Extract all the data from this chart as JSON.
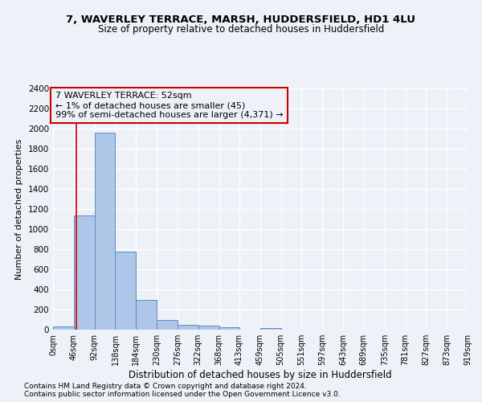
{
  "title_line1": "7, WAVERLEY TERRACE, MARSH, HUDDERSFIELD, HD1 4LU",
  "title_line2": "Size of property relative to detached houses in Huddersfield",
  "xlabel": "Distribution of detached houses by size in Huddersfield",
  "ylabel": "Number of detached properties",
  "footnote1": "Contains HM Land Registry data © Crown copyright and database right 2024.",
  "footnote2": "Contains public sector information licensed under the Open Government Licence v3.0.",
  "bin_edges": [
    0,
    46,
    92,
    138,
    184,
    230,
    276,
    322,
    368,
    413,
    459,
    505,
    551,
    597,
    643,
    689,
    735,
    781,
    827,
    873,
    919
  ],
  "bar_heights": [
    35,
    1140,
    1960,
    775,
    300,
    100,
    47,
    38,
    25,
    0,
    18,
    0,
    0,
    0,
    0,
    0,
    0,
    0,
    0,
    0
  ],
  "bar_color": "#aec6e8",
  "bar_edge_color": "#5a8fc4",
  "property_size": 52,
  "property_line_color": "#cc0000",
  "annotation_text": "7 WAVERLEY TERRACE: 52sqm\n← 1% of detached houses are smaller (45)\n99% of semi-detached houses are larger (4,371) →",
  "ylim": [
    0,
    2400
  ],
  "yticks": [
    0,
    200,
    400,
    600,
    800,
    1000,
    1200,
    1400,
    1600,
    1800,
    2000,
    2200,
    2400
  ],
  "tick_labels": [
    "0sqm",
    "46sqm",
    "92sqm",
    "138sqm",
    "184sqm",
    "230sqm",
    "276sqm",
    "322sqm",
    "368sqm",
    "413sqm",
    "459sqm",
    "505sqm",
    "551sqm",
    "597sqm",
    "643sqm",
    "689sqm",
    "735sqm",
    "781sqm",
    "827sqm",
    "873sqm",
    "919sqm"
  ],
  "background_color": "#eef2f8",
  "grid_color": "#ffffff",
  "title_fontsize": 9.5,
  "subtitle_fontsize": 8.5,
  "ylabel_fontsize": 8,
  "xlabel_fontsize": 8.5,
  "tick_fontsize": 7,
  "annotation_fontsize": 8,
  "footnote_fontsize": 6.5
}
